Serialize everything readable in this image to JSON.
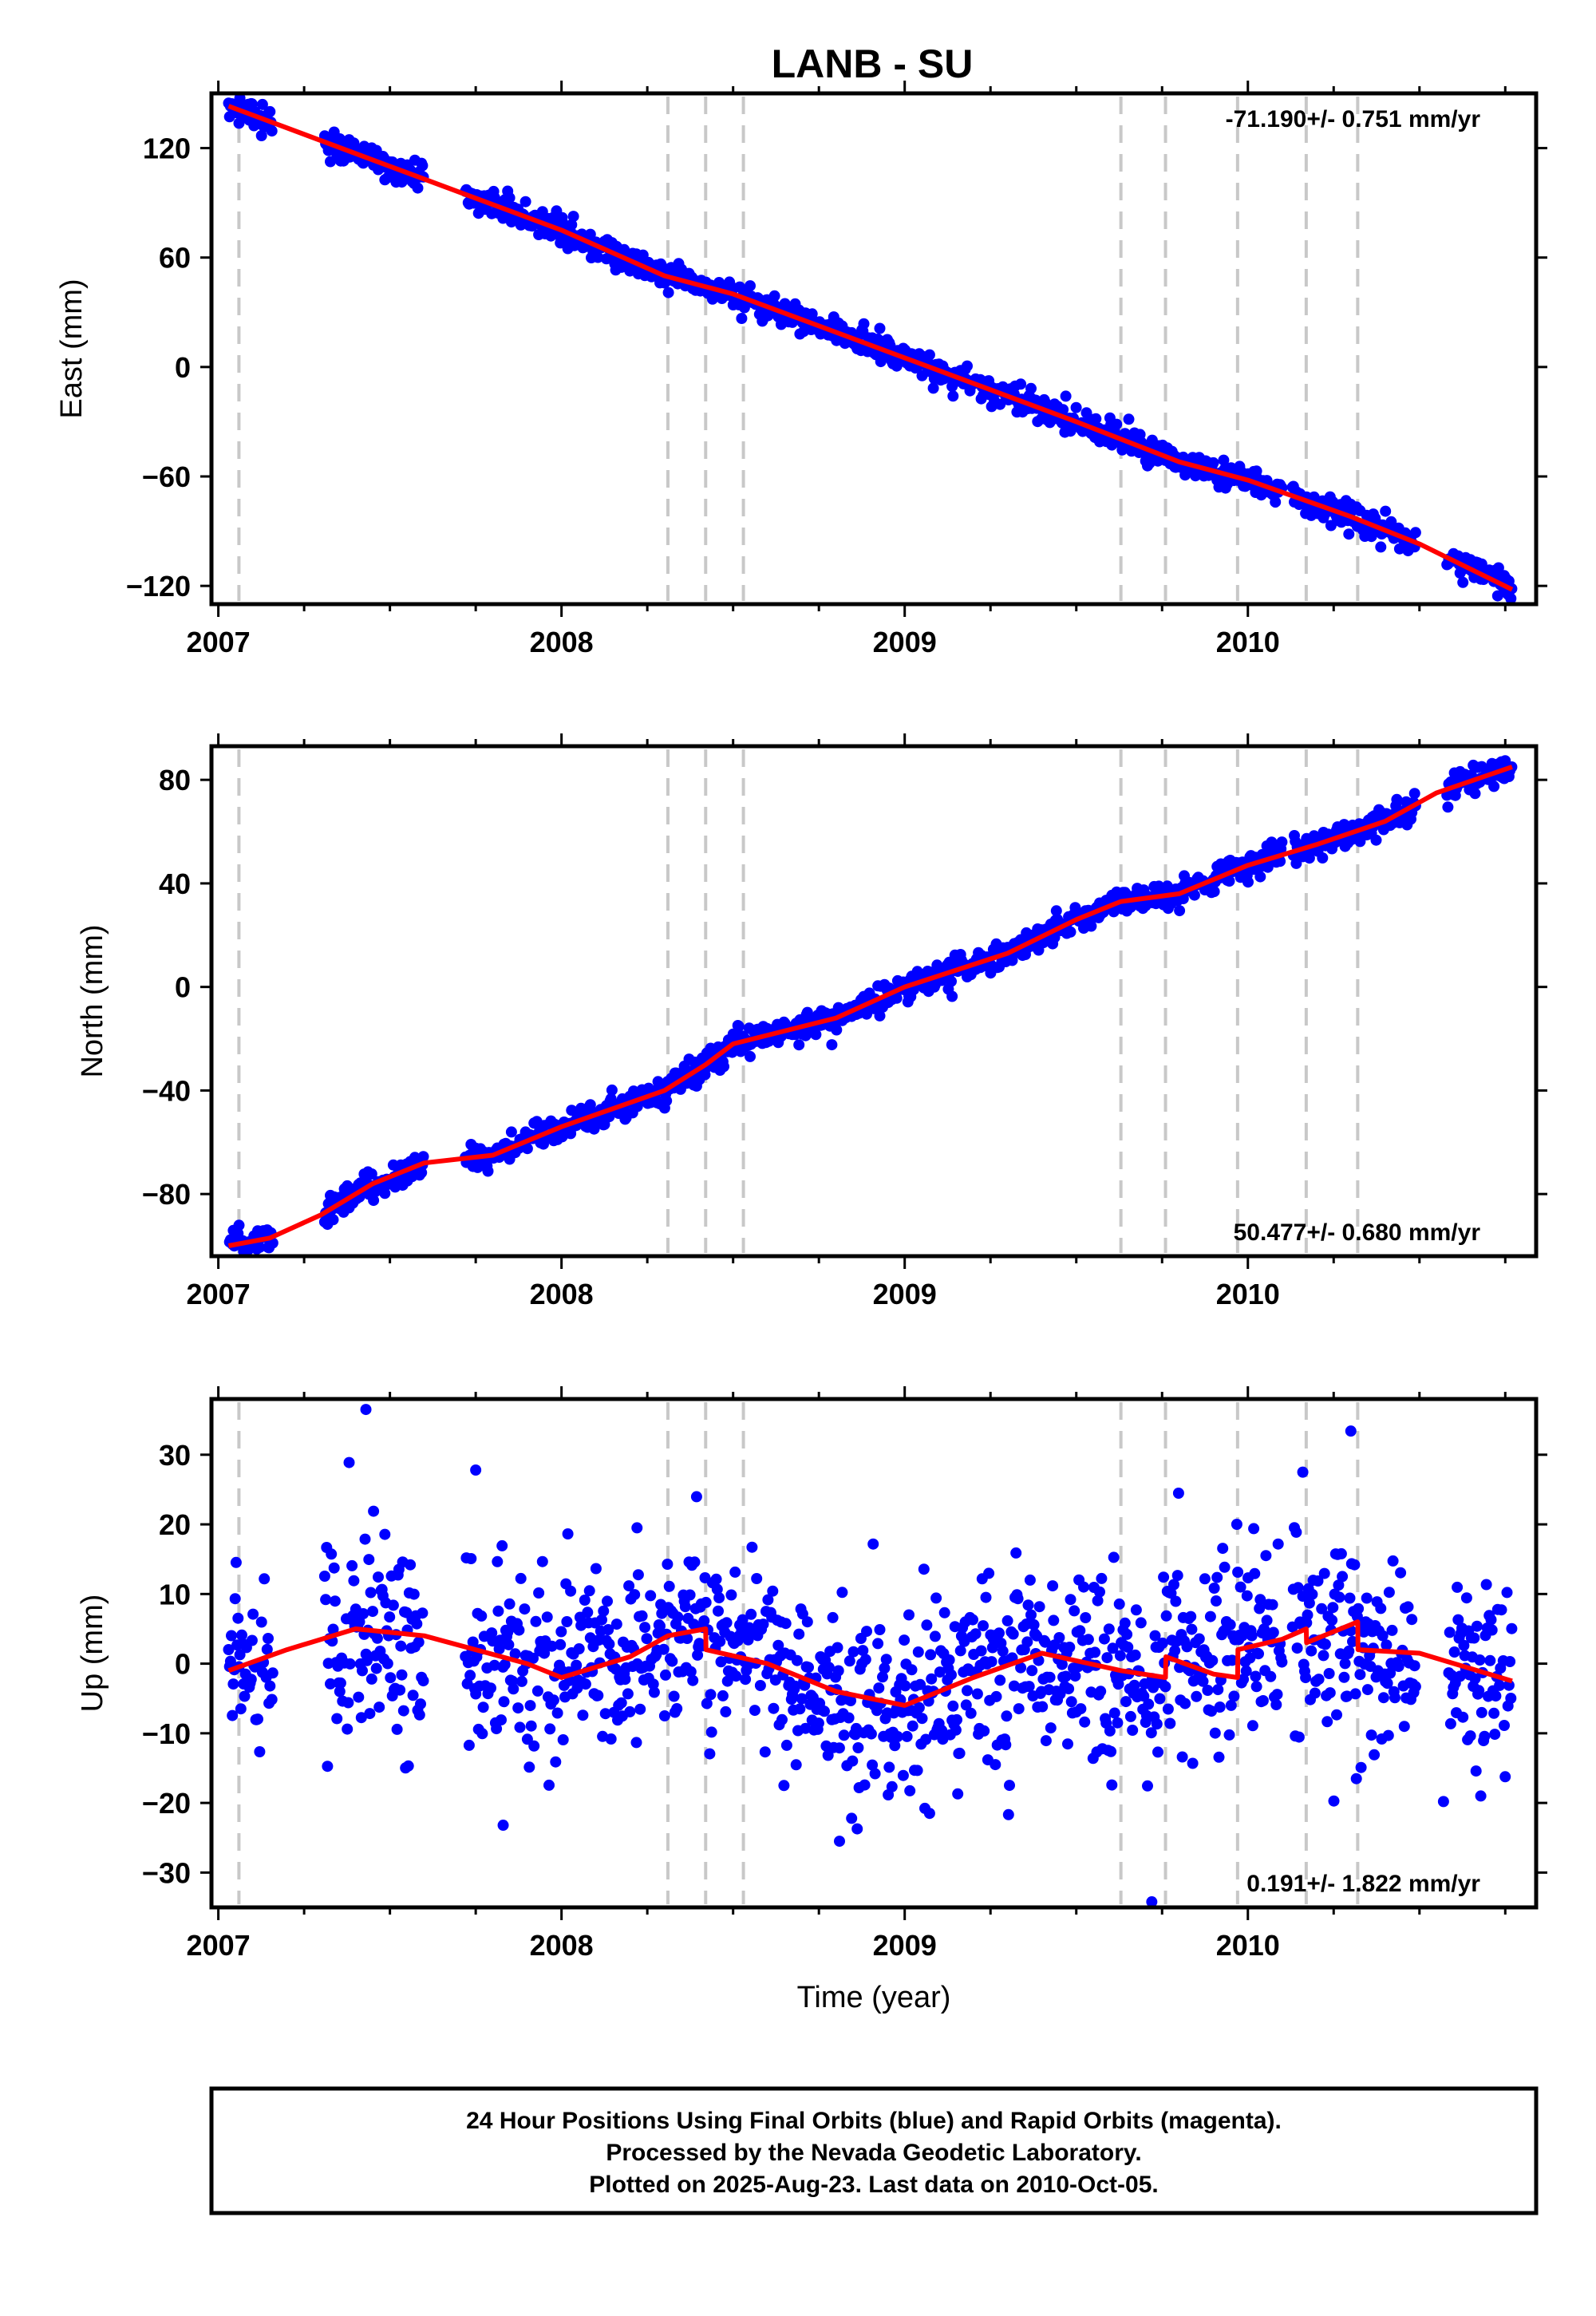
{
  "chart_data": [
    {
      "type": "scatter",
      "title": "LANB - SU",
      "xlabel": "",
      "ylabel": "East (mm)",
      "xlim": [
        2006.98,
        2010.84
      ],
      "ylim": [
        -130,
        150
      ],
      "x_ticks": [
        2007,
        2008,
        2009,
        2010
      ],
      "x_tick_labels": [
        "2007",
        "2008",
        "2009",
        "2010"
      ],
      "y_ticks": [
        120,
        60,
        0,
        -60,
        -120
      ],
      "y_tick_labels": [
        "120",
        "60",
        "0",
        "−60",
        "−120"
      ],
      "rate_label": "-71.190+/- 0.751 mm/yr",
      "rate_label_position": "top-right",
      "grid": false,
      "event_lines": [
        2007.06,
        2008.31,
        2008.42,
        2008.53,
        2009.63,
        2009.76,
        2009.97,
        2010.17,
        2010.32
      ],
      "series": [
        {
          "kind": "points",
          "color": "#0000ff",
          "segments": [
            [
              2007.03,
              2007.16
            ],
            [
              2007.31,
              2007.6
            ],
            [
              2007.72,
              2010.1
            ],
            [
              2010.13,
              2010.49
            ],
            [
              2010.58,
              2010.77
            ]
          ],
          "trend": {
            "x0": 2007.0,
            "y0": 145,
            "rate": -71.19,
            "noise": 3.5
          }
        },
        {
          "kind": "model",
          "color": "#ff0000",
          "model_points": [
            [
              2007.03,
              143
            ],
            [
              2007.5,
              110
            ],
            [
              2008.0,
              75
            ],
            [
              2008.3,
              50
            ],
            [
              2008.5,
              40
            ],
            [
              2009.0,
              5
            ],
            [
              2009.5,
              -30
            ],
            [
              2009.8,
              -52
            ],
            [
              2010.0,
              -62
            ],
            [
              2010.3,
              -82
            ],
            [
              2010.5,
              -97
            ],
            [
              2010.77,
              -122
            ]
          ]
        }
      ]
    },
    {
      "type": "scatter",
      "xlabel": "",
      "ylabel": "North (mm)",
      "xlim": [
        2006.98,
        2010.84
      ],
      "ylim": [
        -104,
        93
      ],
      "x_ticks": [
        2007,
        2008,
        2009,
        2010
      ],
      "x_tick_labels": [
        "2007",
        "2008",
        "2009",
        "2010"
      ],
      "y_ticks": [
        80,
        40,
        0,
        -40,
        -80
      ],
      "y_tick_labels": [
        "80",
        "40",
        "0",
        "−40",
        "−80"
      ],
      "rate_label": "50.477+/- 0.680 mm/yr",
      "rate_label_position": "bottom-right",
      "grid": false,
      "event_lines": [
        2007.06,
        2008.31,
        2008.42,
        2008.53,
        2009.63,
        2009.76,
        2009.97,
        2010.17,
        2010.32
      ],
      "series": [
        {
          "kind": "points",
          "color": "#0000ff",
          "segments": [
            [
              2007.03,
              2007.16
            ],
            [
              2007.31,
              2007.6
            ],
            [
              2007.72,
              2010.1
            ],
            [
              2010.13,
              2010.49
            ],
            [
              2010.58,
              2010.77
            ]
          ],
          "model_ref": 1,
          "noise": 2.5
        },
        {
          "kind": "model",
          "color": "#ff0000",
          "model_points": [
            [
              2007.03,
              -100
            ],
            [
              2007.15,
              -97
            ],
            [
              2007.3,
              -88
            ],
            [
              2007.45,
              -76
            ],
            [
              2007.6,
              -68
            ],
            [
              2007.8,
              -65
            ],
            [
              2008.0,
              -54
            ],
            [
              2008.3,
              -40
            ],
            [
              2008.42,
              -30
            ],
            [
              2008.5,
              -22
            ],
            [
              2008.8,
              -12
            ],
            [
              2009.0,
              0
            ],
            [
              2009.3,
              13
            ],
            [
              2009.5,
              26
            ],
            [
              2009.63,
              33
            ],
            [
              2009.8,
              36
            ],
            [
              2010.0,
              47
            ],
            [
              2010.2,
              55
            ],
            [
              2010.4,
              64
            ],
            [
              2010.55,
              75
            ],
            [
              2010.77,
              85
            ]
          ]
        }
      ]
    },
    {
      "type": "scatter",
      "xlabel": "Time (year)",
      "ylabel": "Up (mm)",
      "xlim": [
        2006.98,
        2010.84
      ],
      "ylim": [
        -35,
        38
      ],
      "x_ticks": [
        2007,
        2008,
        2009,
        2010
      ],
      "x_tick_labels": [
        "2007",
        "2008",
        "2009",
        "2010"
      ],
      "y_ticks": [
        30,
        20,
        10,
        0,
        -10,
        -20,
        -30
      ],
      "y_tick_labels": [
        "30",
        "20",
        "10",
        "0",
        "−10",
        "−20",
        "−30"
      ],
      "rate_label": "0.191+/- 1.822 mm/yr",
      "rate_label_position": "bottom-right",
      "grid": false,
      "event_lines": [
        2007.06,
        2008.31,
        2008.42,
        2008.53,
        2009.63,
        2009.76,
        2009.97,
        2010.17,
        2010.32
      ],
      "series": [
        {
          "kind": "points",
          "color": "#0000ff",
          "segments": [
            [
              2007.03,
              2007.16
            ],
            [
              2007.31,
              2007.6
            ],
            [
              2007.72,
              2010.1
            ],
            [
              2010.13,
              2010.49
            ],
            [
              2010.58,
              2010.77
            ]
          ],
          "model_ref": 1,
          "noise": 7,
          "outliers": [
            [
              2007.43,
              36.5
            ],
            [
              2007.75,
              27.8
            ],
            [
              2008.22,
              19.5
            ],
            [
              2010.3,
              33.4
            ],
            [
              2010.16,
              27.5
            ],
            [
              2009.72,
              -34.2
            ],
            [
              2008.81,
              -25.5
            ],
            [
              2007.83,
              -23.2
            ],
            [
              2010.57,
              -19.8
            ]
          ]
        },
        {
          "kind": "model",
          "color": "#ff0000",
          "model_points": [
            [
              2007.03,
              -1
            ],
            [
              2007.2,
              2
            ],
            [
              2007.4,
              5
            ],
            [
              2007.6,
              4
            ],
            [
              2007.9,
              0
            ],
            [
              2008.0,
              -2
            ],
            [
              2008.2,
              1
            ],
            [
              2008.31,
              4
            ],
            [
              2008.42,
              5
            ],
            [
              2008.421,
              2
            ],
            [
              2008.6,
              0
            ],
            [
              2008.8,
              -4
            ],
            [
              2009.0,
              -6
            ],
            [
              2009.2,
              -2
            ],
            [
              2009.4,
              1.5
            ],
            [
              2009.63,
              -1
            ],
            [
              2009.76,
              -2
            ],
            [
              2009.761,
              1
            ],
            [
              2009.9,
              -1.5
            ],
            [
              2009.97,
              -2
            ],
            [
              2009.971,
              2
            ],
            [
              2010.1,
              3.5
            ],
            [
              2010.17,
              5
            ],
            [
              2010.171,
              3
            ],
            [
              2010.32,
              6
            ],
            [
              2010.321,
              2
            ],
            [
              2010.5,
              1.5
            ],
            [
              2010.77,
              -2.5
            ]
          ]
        }
      ]
    }
  ],
  "info_box": {
    "line1": "24 Hour Positions Using Final Orbits (blue) and Rapid Orbits (magenta).",
    "line2": "Processed by the Nevada Geodetic Laboratory.",
    "line3": "Plotted on 2025-Aug-23. Last data on 2010-Oct-05."
  },
  "colors": {
    "points": "#0000ff",
    "model": "#ff0000",
    "event_line": "#c8c8c8",
    "frame": "#000000"
  }
}
